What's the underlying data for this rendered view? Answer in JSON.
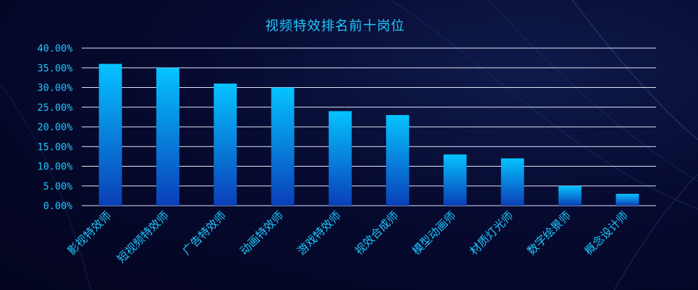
{
  "chart_data": {
    "type": "bar",
    "title": "视频特效排名前十岗位",
    "xlabel": "",
    "ylabel": "",
    "ylim": [
      0,
      40
    ],
    "yticks": [
      "0.00%",
      "5.00%",
      "10.00%",
      "15.00%",
      "20.00%",
      "25.00%",
      "30.00%",
      "35.00%",
      "40.00%"
    ],
    "categories": [
      "影视特效师",
      "短视频特效师",
      "广告特效师",
      "动画特效师",
      "游戏特效师",
      "视效合成师",
      "模型动画师",
      "材质灯光师",
      "数字绘景师",
      "概念设计师"
    ],
    "values": [
      36,
      35,
      31,
      30,
      24,
      23,
      13,
      12,
      5,
      3
    ],
    "grid": true,
    "legend": "none",
    "colors": {
      "bar_top": "#05c3ff",
      "bar_bottom": "#0a3fb8",
      "text": "#1ec8ff",
      "grid": "#e6ecff"
    }
  }
}
